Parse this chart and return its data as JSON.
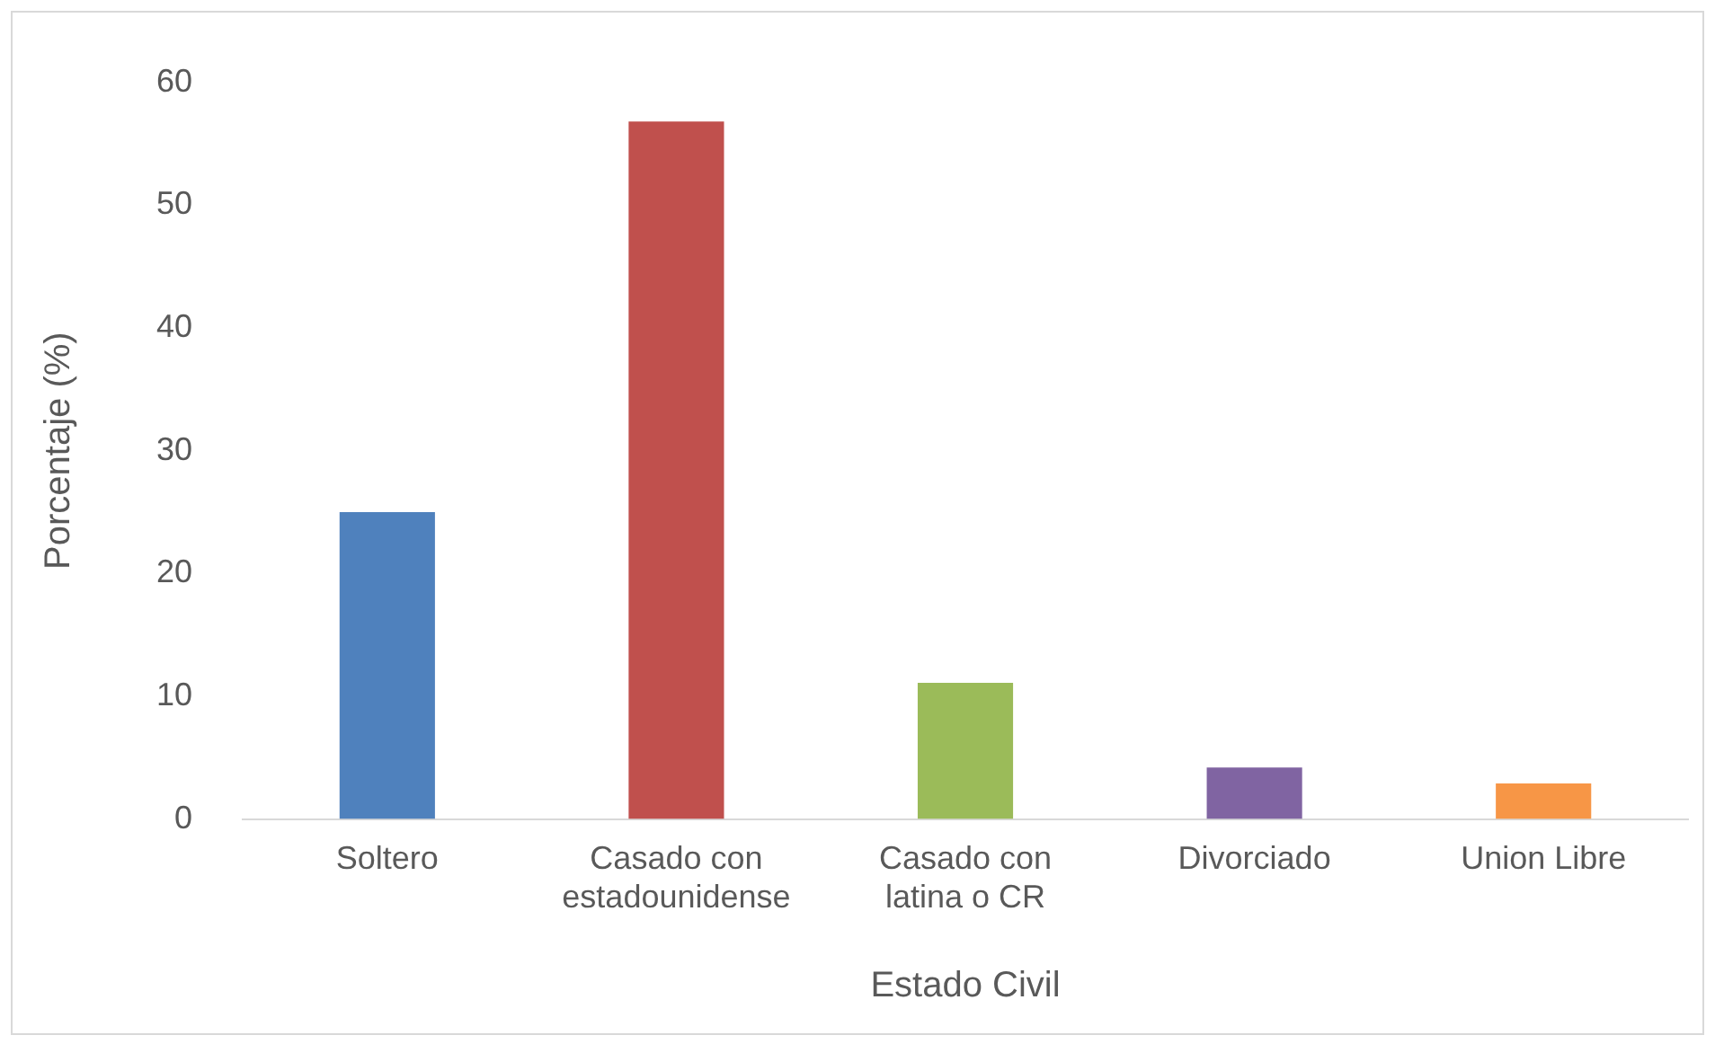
{
  "chart_data": {
    "type": "bar",
    "xlabel": "Estado Civil",
    "ylabel": "Porcentaje (%)",
    "categories": [
      "Soltero",
      "Casado con estadounidense",
      "Casado con latina o CR",
      "Divorciado",
      "Union Libre"
    ],
    "values": [
      25,
      56.8,
      11.1,
      4.2,
      2.9
    ],
    "colors": [
      "#4f81bd",
      "#c0504d",
      "#9bbb59",
      "#8064a2",
      "#f79646"
    ],
    "ylim": [
      0,
      60
    ],
    "yticks": [
      0,
      10,
      20,
      30,
      40,
      50,
      60
    ],
    "grid": false,
    "legend": false
  }
}
